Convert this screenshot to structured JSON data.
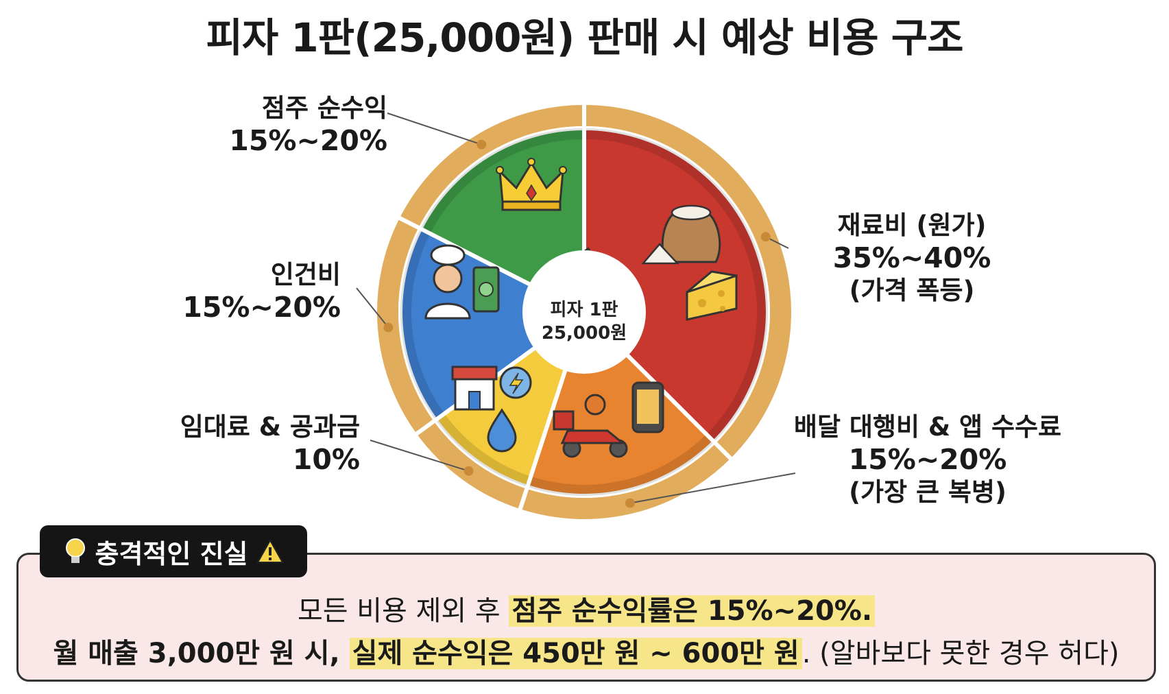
{
  "title": "피자 1판(25,000원) 판매 시 예상 비용 구조",
  "center": {
    "line1": "피자 1판",
    "line2": "25,000원"
  },
  "colors": {
    "crust": "#e1ad5c",
    "crust_dark": "#c98a38",
    "materials": "#c9382f",
    "delivery": "#e8832f",
    "rent": "#f4cb3c",
    "labor": "#3f7fd0",
    "profit": "#3e9a47"
  },
  "chart_data": {
    "type": "pie",
    "title": "피자 1판(25,000원) 판매 시 예상 비용 구조",
    "slices": [
      {
        "name": "재료비 (원가)",
        "range": "35%~40%",
        "note": "(가격 폭등)",
        "value": 37.5,
        "color": "#c9382f",
        "icon": "flour-sack-cheese-icon"
      },
      {
        "name": "배달 대행비 & 앱 수수료",
        "range": "15%~20%",
        "note": "(가장 큰 복병)",
        "value": 17.5,
        "color": "#e8832f",
        "icon": "delivery-scooter-phone-icon"
      },
      {
        "name": "임대료 & 공과금",
        "range": "10%",
        "note": "",
        "value": 10,
        "color": "#f4cb3c",
        "icon": "store-utility-icon"
      },
      {
        "name": "인건비",
        "range": "15%~20%",
        "note": "",
        "value": 17.5,
        "color": "#3f7fd0",
        "icon": "chef-money-icon"
      },
      {
        "name": "점주 순수익",
        "range": "15%~20%",
        "note": "",
        "value": 17.5,
        "color": "#3e9a47",
        "icon": "crown-icon"
      }
    ]
  },
  "truth": {
    "tag": "충격적인 진실",
    "line1_plain": "모든 비용 제외 후 ",
    "line1_hl": "점주 순수익률은 15%~20%.",
    "line2_bold": "월 매출 3,000만 원 시, ",
    "line2_hl": "실제 순수익은 450만 원 ~ 600만 원",
    "line2_rest": ". (알바보다 못한 경우 허다)"
  }
}
